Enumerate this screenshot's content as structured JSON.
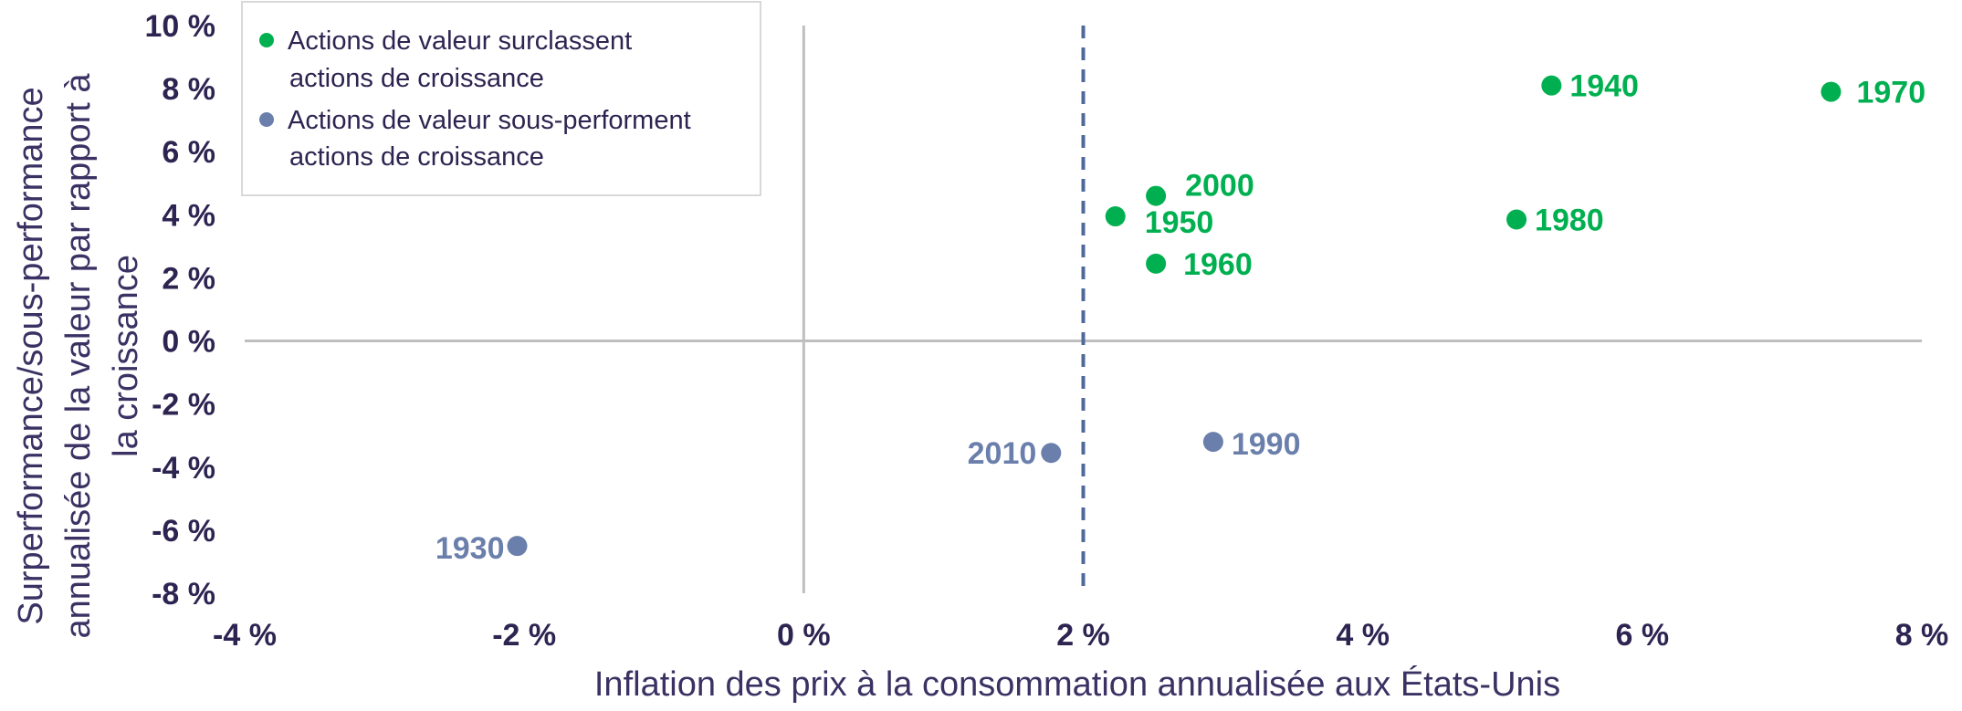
{
  "chart_data": {
    "type": "scatter",
    "title": "",
    "xlabel": "Inflation des prix à la consommation annualisée aux États-Unis",
    "ylabel_lines": [
      "Surperformance/sous-performance",
      "annualisée de la valeur par rapport à",
      "la croissance"
    ],
    "xlim": [
      -4,
      8
    ],
    "ylim": [
      -8,
      10
    ],
    "x_ticks": [
      -4,
      -2,
      0,
      2,
      4,
      6,
      8
    ],
    "y_ticks": [
      10,
      8,
      6,
      4,
      2,
      0,
      -2,
      -4,
      -6,
      -8
    ],
    "x_tick_labels": [
      "-4 %",
      "-2 %",
      "0 %",
      "2 %",
      "4 %",
      "6 %",
      "8 %"
    ],
    "y_tick_labels": [
      "10 %",
      "8 %",
      "6 %",
      "4 %",
      "2 %",
      "0 %",
      "-2 %",
      "-4 %",
      "-6 %",
      "-8 %"
    ],
    "reference_line_x": 2,
    "legend_position": "top-left",
    "series": [
      {
        "name_lines": [
          "Actions de valeur surclassent",
          "actions de croissance"
        ],
        "color": "#00b050",
        "points": [
          {
            "label": "1940",
            "x": 5.35,
            "y": 8.1
          },
          {
            "label": "1970",
            "x": 7.35,
            "y": 7.9
          },
          {
            "label": "2000",
            "x": 2.52,
            "y": 4.6
          },
          {
            "label": "1950",
            "x": 2.23,
            "y": 3.95
          },
          {
            "label": "1980",
            "x": 5.1,
            "y": 3.85
          },
          {
            "label": "1960",
            "x": 2.52,
            "y": 2.45
          }
        ]
      },
      {
        "name_lines": [
          "Actions de valeur sous-performent",
          "actions de croissance"
        ],
        "color": "#6a7fab",
        "points": [
          {
            "label": "1990",
            "x": 2.93,
            "y": -3.2
          },
          {
            "label": "2010",
            "x": 1.77,
            "y": -3.55
          },
          {
            "label": "1930",
            "x": -2.05,
            "y": -6.5
          }
        ]
      }
    ]
  }
}
